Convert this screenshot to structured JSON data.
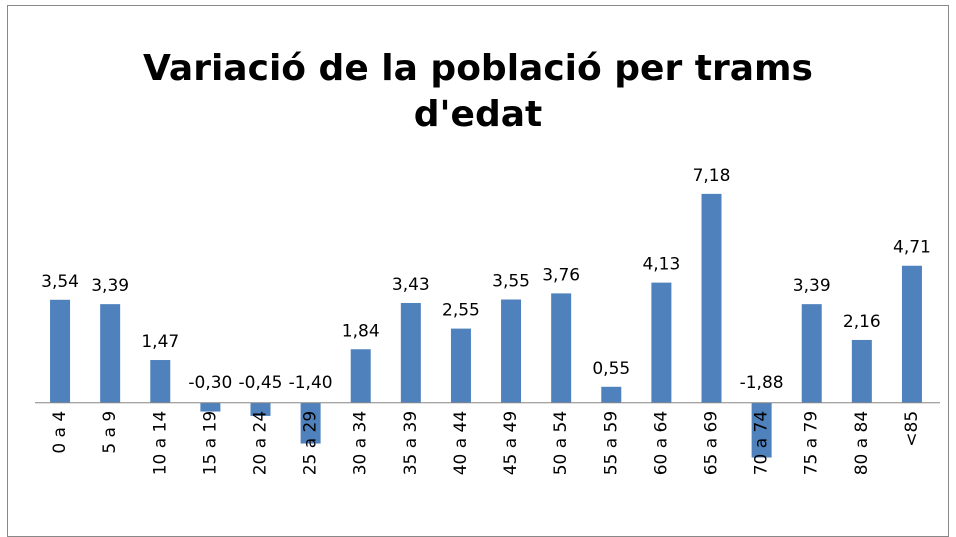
{
  "chart_data": {
    "type": "bar",
    "title": "Variació de la població per trams d'edat",
    "categories": [
      "0 a 4",
      "5 a 9",
      "10 a 14",
      "15 a 19",
      "20 a 24",
      "25 a 29",
      "30 a 34",
      "35 a 39",
      "40 a 44",
      "45 a 49",
      "50 a 54",
      "55 a 59",
      "60 a 64",
      "65 a 69",
      "70 a 74",
      "75 a 79",
      "80 a 84",
      "<85"
    ],
    "values": [
      3.54,
      3.39,
      1.47,
      -0.3,
      -0.45,
      -1.4,
      1.84,
      3.43,
      2.55,
      3.55,
      3.76,
      0.55,
      4.13,
      7.18,
      -1.88,
      3.39,
      2.16,
      4.71
    ],
    "value_labels": [
      "3,54",
      "3,39",
      "1,47",
      "-0,30",
      "-0,45",
      "-1,40",
      "1,84",
      "3,43",
      "2,55",
      "3,55",
      "3,76",
      "0,55",
      "4,13",
      "7,18",
      "-1,88",
      "3,39",
      "2,16",
      "4,71"
    ],
    "color": "#4f81bd",
    "ylim": [
      -2,
      8
    ]
  }
}
